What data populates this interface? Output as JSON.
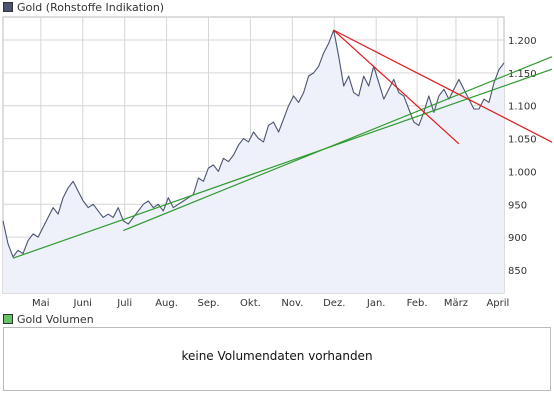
{
  "price_legend": {
    "label": "Gold (Rohstoffe Indikation)",
    "color": "#4a5470"
  },
  "volume_legend": {
    "label": "Gold Volumen",
    "color": "#66c266"
  },
  "volume_message": "keine Volumendaten vorhanden",
  "colors": {
    "price_line": "#4a5470",
    "price_fill": "#eef0fa",
    "grid": "#d6d6d6",
    "trend_green": "#2e9b2e",
    "trend_red": "#e01b1b"
  },
  "chart_data": {
    "type": "area",
    "title": "Gold (Rohstoffe Indikation)",
    "xlabel": "",
    "ylabel": "",
    "ylim": [
      815,
      1235
    ],
    "yticks": [
      850,
      900,
      950,
      1000,
      1050,
      1100,
      1150,
      1200
    ],
    "ytick_labels": [
      "850",
      "900",
      "950",
      "1.000",
      "1.050",
      "1.100",
      "1.150",
      "1.200"
    ],
    "xlim": [
      0,
      100
    ],
    "xticks": [
      {
        "pos": 7.55,
        "label": "Mai"
      },
      {
        "pos": 15.92,
        "label": "Juni"
      },
      {
        "pos": 24.29,
        "label": "Juli"
      },
      {
        "pos": 32.65,
        "label": "Aug."
      },
      {
        "pos": 41.02,
        "label": "Sep."
      },
      {
        "pos": 49.39,
        "label": "Okt."
      },
      {
        "pos": 57.76,
        "label": "Nov."
      },
      {
        "pos": 66.12,
        "label": "Dez."
      },
      {
        "pos": 74.49,
        "label": "Jan."
      },
      {
        "pos": 82.65,
        "label": "Feb."
      },
      {
        "pos": 90.41,
        "label": "März"
      },
      {
        "pos": 98.78,
        "label": "April"
      }
    ],
    "grid": true,
    "series": [
      {
        "x": [
          0,
          1,
          2,
          3,
          4,
          5,
          6,
          7,
          8,
          9,
          10,
          11,
          12,
          13,
          14,
          15,
          16,
          17,
          18,
          19,
          20,
          21,
          22,
          23,
          24,
          25,
          26,
          27,
          28,
          29,
          30,
          31,
          32,
          33,
          34,
          35,
          36,
          37,
          38,
          39,
          40,
          41,
          42,
          43,
          44,
          45,
          46,
          47,
          48,
          49,
          50,
          51,
          52,
          53,
          54,
          55,
          56,
          57,
          58,
          59,
          60,
          61,
          62,
          63,
          64,
          65,
          66,
          67,
          68,
          69,
          70,
          71,
          72,
          73,
          74,
          75,
          76,
          77,
          78,
          79,
          80,
          81,
          82,
          83,
          84,
          85,
          86,
          87,
          88,
          89,
          90,
          91,
          92,
          93,
          94,
          95,
          96,
          97,
          98,
          99,
          100
        ],
        "y": [
          925,
          890,
          870,
          880,
          875,
          895,
          905,
          900,
          915,
          930,
          945,
          935,
          960,
          975,
          985,
          970,
          955,
          945,
          950,
          940,
          930,
          935,
          930,
          945,
          925,
          920,
          930,
          940,
          950,
          955,
          945,
          950,
          940,
          960,
          945,
          950,
          955,
          960,
          965,
          990,
          985,
          1005,
          1010,
          1000,
          1020,
          1015,
          1025,
          1040,
          1050,
          1045,
          1060,
          1050,
          1045,
          1070,
          1075,
          1060,
          1080,
          1100,
          1115,
          1105,
          1120,
          1145,
          1150,
          1160,
          1180,
          1195,
          1215,
          1175,
          1130,
          1145,
          1120,
          1115,
          1145,
          1130,
          1160,
          1135,
          1110,
          1125,
          1140,
          1120,
          1115,
          1095,
          1075,
          1070,
          1090,
          1115,
          1090,
          1115,
          1125,
          1110,
          1125,
          1140,
          1125,
          1110,
          1095,
          1095,
          1110,
          1105,
          1135,
          1155,
          1165
        ]
      }
    ],
    "trendlines": [
      {
        "color": "green",
        "from": [
          2,
          868
        ],
        "to": [
          100,
          1130
        ]
      },
      {
        "color": "green",
        "from": [
          24,
          910
        ],
        "to": [
          100,
          1145
        ]
      },
      {
        "color": "red",
        "from": [
          66,
          1215
        ],
        "to": [
          100,
          1082
        ]
      },
      {
        "color": "red",
        "from": [
          66,
          1215
        ],
        "to": [
          91,
          1042
        ]
      }
    ]
  }
}
